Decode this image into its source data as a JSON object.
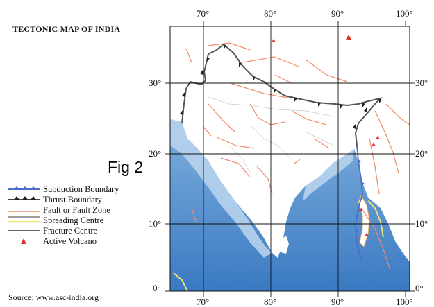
{
  "map": {
    "title": "TECTONIC MAP OF INDIA",
    "figure_label": "Fig 2",
    "source": "Source: www.asc-india.org",
    "longitude_labels": [
      "70°",
      "80°",
      "90°",
      "100°"
    ],
    "latitude_labels": [
      "30°",
      "20°",
      "10°",
      "0°"
    ],
    "colors": {
      "sea": "#3f7fc6",
      "sea_shallow": "#a9c9e6",
      "land": "#ffffff",
      "fault": "#f08a6a",
      "thrust": "#333333",
      "subduction": "#4a6ec9",
      "spreading": "#f2e27a",
      "volcano": "#e0312b",
      "grid": "#000000"
    }
  },
  "legend": {
    "items": [
      {
        "label": "Subduction Boundary",
        "symbol": "subduction"
      },
      {
        "label": "Thrust Boundary",
        "symbol": "thrust"
      },
      {
        "label": "Fault or Fault Zone",
        "symbol": "fault"
      },
      {
        "label": "Spreading Centre",
        "symbol": "spreading"
      },
      {
        "label": "Fracture Centre",
        "symbol": "fracture"
      },
      {
        "label": "Active Volcano",
        "symbol": "volcano"
      }
    ]
  }
}
